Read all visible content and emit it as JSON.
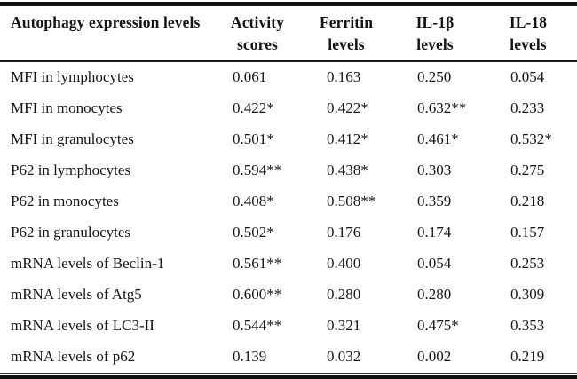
{
  "table": {
    "headers": [
      {
        "line1": "Autophagy expression levels",
        "line2": ""
      },
      {
        "line1": "Activity",
        "line2": "scores"
      },
      {
        "line1": "Ferritin",
        "line2": "levels"
      },
      {
        "line1": "IL-1β",
        "line2": "levels"
      },
      {
        "line1": "IL-18",
        "line2": "levels"
      }
    ],
    "rows": [
      {
        "label": "MFI in lymphocytes",
        "values": [
          "0.061",
          "0.163",
          "0.250",
          "0.054"
        ]
      },
      {
        "label": "MFI in monocytes",
        "values": [
          "0.422*",
          "0.422*",
          "0.632**",
          "0.233"
        ]
      },
      {
        "label": "MFI in granulocytes",
        "values": [
          "0.501*",
          "0.412*",
          "0.461*",
          "0.532*"
        ]
      },
      {
        "label": "P62 in lymphocytes",
        "values": [
          "0.594**",
          "0.438*",
          "0.303",
          "0.275"
        ]
      },
      {
        "label": "P62 in monocytes",
        "values": [
          "0.408*",
          "0.508**",
          "0.359",
          "0.218"
        ]
      },
      {
        "label": "P62 in granulocytes",
        "values": [
          "0.502*",
          "0.176",
          "0.174",
          "0.157"
        ]
      },
      {
        "label": "mRNA levels of Beclin-1",
        "values": [
          "0.561**",
          "0.400",
          "0.054",
          "0.253"
        ]
      },
      {
        "label": "mRNA levels of Atg5",
        "values": [
          "0.600**",
          "0.280",
          "0.280",
          "0.309"
        ]
      },
      {
        "label": "mRNA levels of LC3-II",
        "values": [
          "0.544**",
          "0.321",
          "0.475*",
          "0.353"
        ]
      },
      {
        "label": "mRNA levels of p62",
        "values": [
          "0.139",
          "0.032",
          "0.002",
          "0.219"
        ]
      }
    ],
    "style": {
      "text_color": "#141414",
      "rule_color": "#101010",
      "background": "#ffffff"
    }
  }
}
